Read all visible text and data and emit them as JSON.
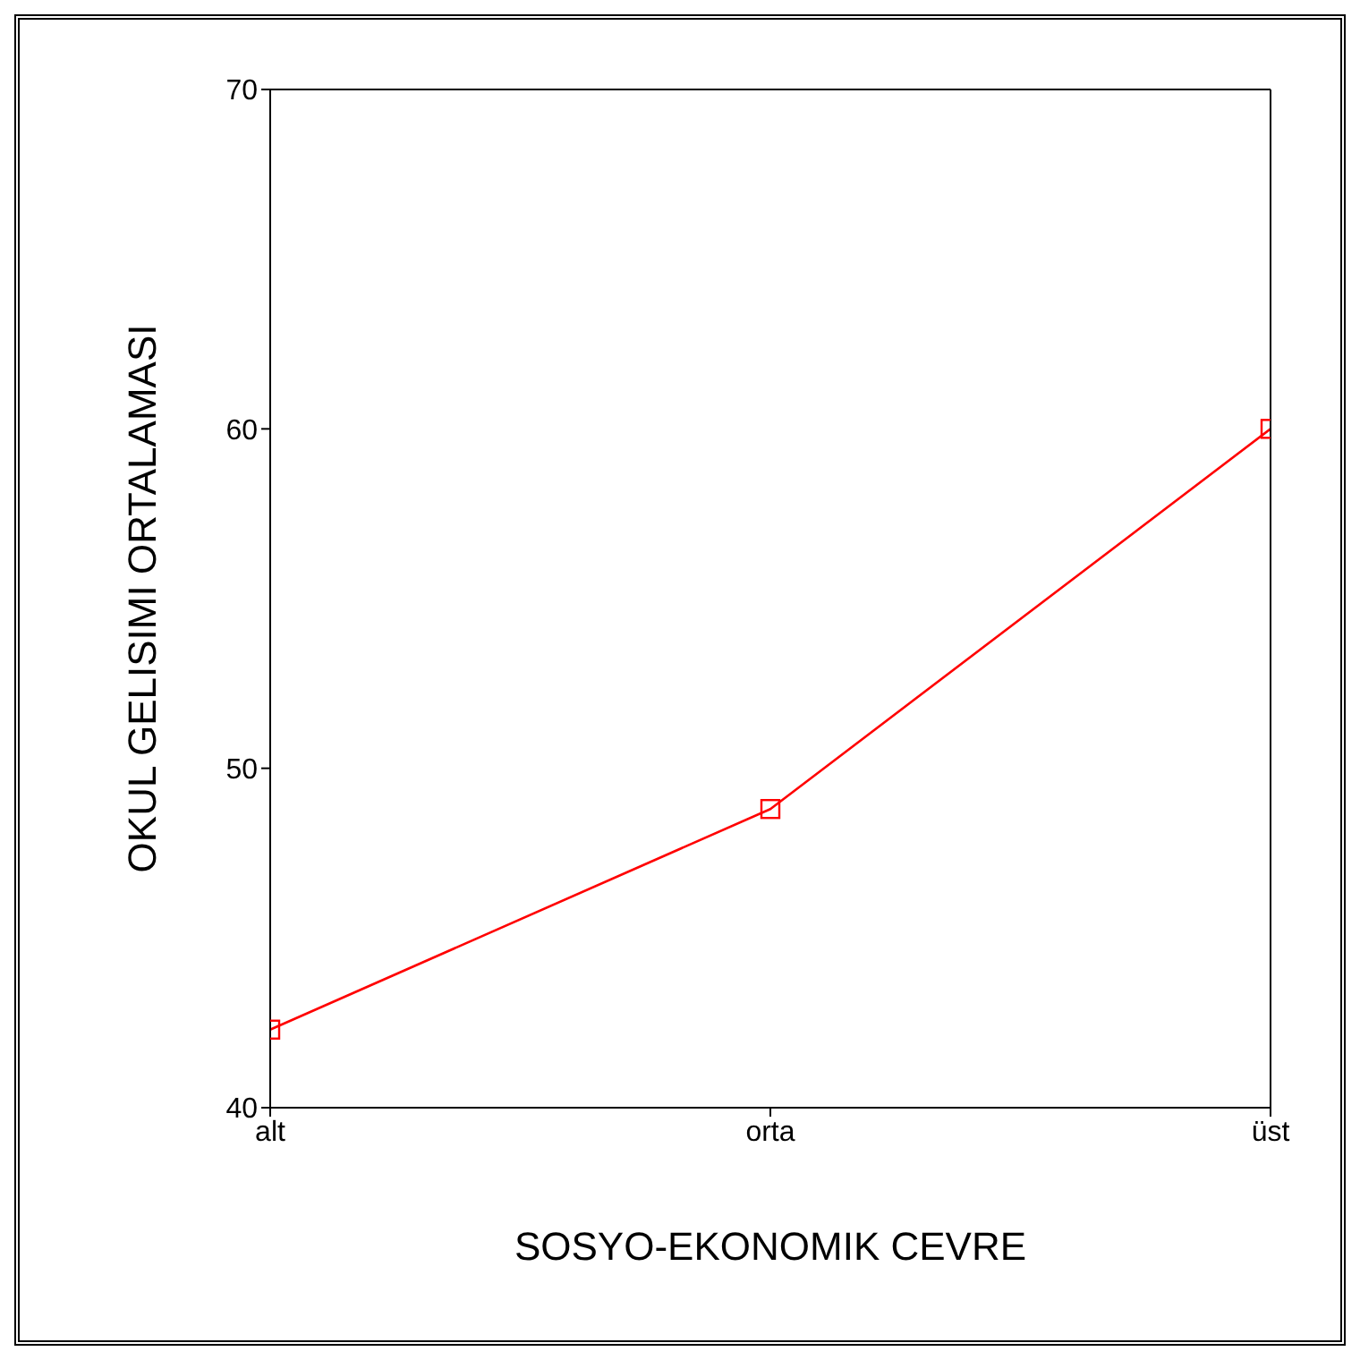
{
  "chart_data": {
    "type": "line",
    "xlabel": "SOSYO-EKONOMIK CEVRE",
    "ylabel": "OKUL GELISIMI ORTALAMASI",
    "categories": [
      "alt",
      "orta",
      "üst"
    ],
    "series": [
      {
        "color": "#ff0000",
        "values": [
          42.3,
          48.8,
          60.0
        ]
      }
    ],
    "ylim": [
      40,
      70
    ],
    "yticks": [
      40,
      50,
      60,
      70
    ],
    "grid": false,
    "legend": false,
    "marker": "square",
    "line_style": "solid"
  }
}
